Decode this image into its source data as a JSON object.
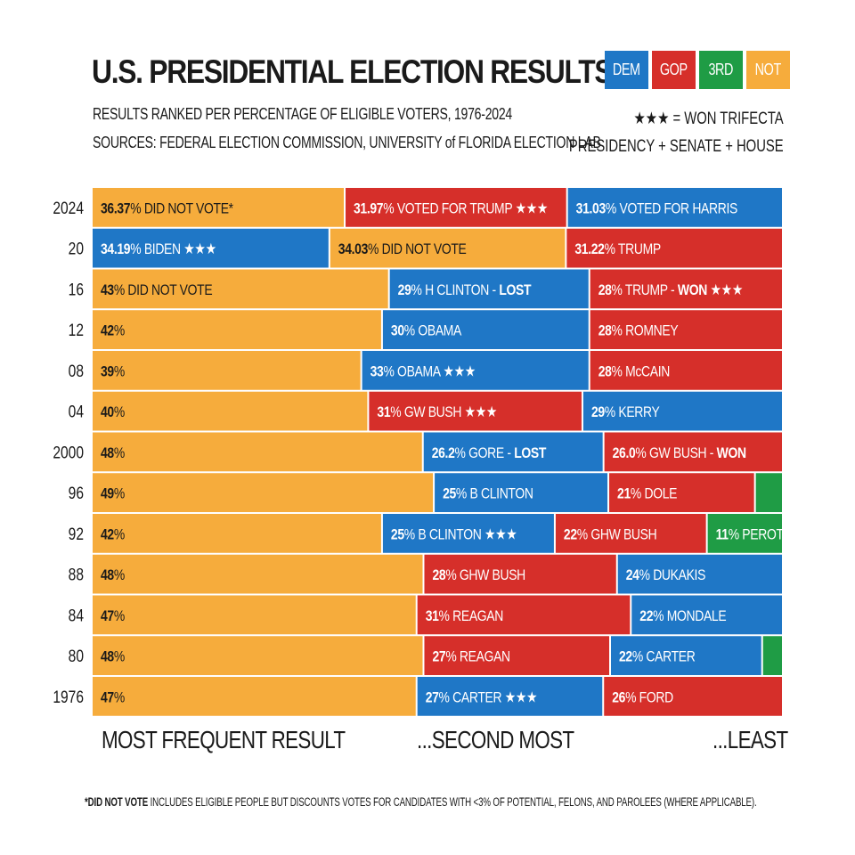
{
  "title": "U.S. PRESIDENTIAL ELECTION RESULTS",
  "subtitle": "RESULTS RANKED PER PERCENTAGE OF ELIGIBLE VOTERS, 1976-2024",
  "sources": "SOURCES: FEDERAL ELECTION COMMISSION, UNIVERSITY of FLORIDA ELECTION LAB",
  "legend": [
    {
      "label": "DEM",
      "color": "#1f77c6"
    },
    {
      "label": "GOP",
      "color": "#d62f2a"
    },
    {
      "label": "3RD",
      "color": "#1f9c45"
    },
    {
      "label": "NOT",
      "color": "#f6ac3c"
    }
  ],
  "trifecta_note": {
    "line1": "★★★ = WON TRIFECTA",
    "line2": "PRESIDENCY + SENATE + HOUSE"
  },
  "rank_labels": {
    "most": "MOST FREQUENT RESULT",
    "second": "...SECOND MOST",
    "least": "...LEAST"
  },
  "footnote": {
    "bold": "*DID NOT VOTE",
    "rest": " INCLUDES ELIGIBLE PEOPLE BUT DISCOUNTS VOTES FOR CANDIDATES WITH <3% OF POTENTIAL, FELONS, AND PAROLEES (WHERE APPLICABLE)."
  },
  "chart_data": {
    "type": "bar",
    "orientation": "horizontal-stacked",
    "categories": [
      "2024",
      "20",
      "16",
      "12",
      "08",
      "04",
      "2000",
      "96",
      "92",
      "88",
      "84",
      "80",
      "1976"
    ],
    "rows": [
      {
        "year": "2024",
        "segments": [
          {
            "party": "NOT",
            "value": 36.37,
            "num": "36.37",
            "text": "% DID NOT VOTE*"
          },
          {
            "party": "GOP",
            "value": 31.97,
            "num": "31.97",
            "text": "% VOTED FOR TRUMP ★★★"
          },
          {
            "party": "DEM",
            "value": 31.03,
            "num": "31.03",
            "text": "% VOTED FOR HARRIS"
          }
        ]
      },
      {
        "year": "20",
        "segments": [
          {
            "party": "DEM",
            "value": 34.19,
            "num": "34.19",
            "text": "% BIDEN ★★★"
          },
          {
            "party": "NOT",
            "value": 34.03,
            "num": "34.03",
            "text": "% DID NOT VOTE"
          },
          {
            "party": "GOP",
            "value": 31.22,
            "num": "31.22",
            "text": "% TRUMP"
          }
        ]
      },
      {
        "year": "16",
        "segments": [
          {
            "party": "NOT",
            "value": 43,
            "num": "43",
            "text": "% DID NOT VOTE"
          },
          {
            "party": "DEM",
            "value": 29,
            "num": "29",
            "text": "% H CLINTON - ",
            "bold_suffix": "LOST"
          },
          {
            "party": "GOP",
            "value": 28,
            "num": "28",
            "text": "% TRUMP - ",
            "bold_suffix": "WON",
            "after": " ★★★"
          }
        ]
      },
      {
        "year": "12",
        "segments": [
          {
            "party": "NOT",
            "value": 42,
            "num": "42",
            "text": "%"
          },
          {
            "party": "DEM",
            "value": 30,
            "num": "30",
            "text": "% OBAMA"
          },
          {
            "party": "GOP",
            "value": 28,
            "num": "28",
            "text": "% ROMNEY"
          }
        ]
      },
      {
        "year": "08",
        "segments": [
          {
            "party": "NOT",
            "value": 39,
            "num": "39",
            "text": "%"
          },
          {
            "party": "DEM",
            "value": 33,
            "num": "33",
            "text": "% OBAMA ★★★"
          },
          {
            "party": "GOP",
            "value": 28,
            "num": "28",
            "text": "% McCAIN"
          }
        ]
      },
      {
        "year": "04",
        "segments": [
          {
            "party": "NOT",
            "value": 40,
            "num": "40",
            "text": "%"
          },
          {
            "party": "GOP",
            "value": 31,
            "num": "31",
            "text": "% GW BUSH ★★★"
          },
          {
            "party": "DEM",
            "value": 29,
            "num": "29",
            "text": "% KERRY"
          }
        ]
      },
      {
        "year": "2000",
        "segments": [
          {
            "party": "NOT",
            "value": 48,
            "num": "48",
            "text": "%"
          },
          {
            "party": "DEM",
            "value": 26.2,
            "num": "26.2",
            "text": "% GORE - ",
            "bold_suffix": "LOST"
          },
          {
            "party": "GOP",
            "value": 26.0,
            "num": "26.0",
            "text": "% GW BUSH - ",
            "bold_suffix": "WON"
          }
        ]
      },
      {
        "year": "96",
        "segments": [
          {
            "party": "NOT",
            "value": 49,
            "num": "49",
            "text": "%"
          },
          {
            "party": "DEM",
            "value": 25,
            "num": "25",
            "text": "% B CLINTON"
          },
          {
            "party": "GOP",
            "value": 21,
            "num": "21",
            "text": "% DOLE"
          },
          {
            "party": "3RD",
            "value": 4,
            "num": "",
            "text": ""
          }
        ]
      },
      {
        "year": "92",
        "segments": [
          {
            "party": "NOT",
            "value": 42,
            "num": "42",
            "text": "%"
          },
          {
            "party": "DEM",
            "value": 25,
            "num": "25",
            "text": "% B CLINTON ★★★"
          },
          {
            "party": "GOP",
            "value": 22,
            "num": "22",
            "text": "% GHW BUSH"
          },
          {
            "party": "3RD",
            "value": 11,
            "num": "11",
            "text": "% PEROT"
          }
        ]
      },
      {
        "year": "88",
        "segments": [
          {
            "party": "NOT",
            "value": 48,
            "num": "48",
            "text": "%"
          },
          {
            "party": "GOP",
            "value": 28,
            "num": "28",
            "text": "% GHW BUSH"
          },
          {
            "party": "DEM",
            "value": 24,
            "num": "24",
            "text": "% DUKAKIS"
          }
        ]
      },
      {
        "year": "84",
        "segments": [
          {
            "party": "NOT",
            "value": 47,
            "num": "47",
            "text": "%"
          },
          {
            "party": "GOP",
            "value": 31,
            "num": "31",
            "text": "% REAGAN"
          },
          {
            "party": "DEM",
            "value": 22,
            "num": "22",
            "text": "% MONDALE"
          }
        ]
      },
      {
        "year": "80",
        "segments": [
          {
            "party": "NOT",
            "value": 48,
            "num": "48",
            "text": "%"
          },
          {
            "party": "GOP",
            "value": 27,
            "num": "27",
            "text": "% REAGAN"
          },
          {
            "party": "DEM",
            "value": 22,
            "num": "22",
            "text": "% CARTER"
          },
          {
            "party": "3RD",
            "value": 3,
            "num": "",
            "text": ""
          }
        ]
      },
      {
        "year": "1976",
        "segments": [
          {
            "party": "NOT",
            "value": 47,
            "num": "47",
            "text": "%"
          },
          {
            "party": "DEM",
            "value": 27,
            "num": "27",
            "text": "% CARTER ★★★"
          },
          {
            "party": "GOP",
            "value": 26,
            "num": "26",
            "text": "% FORD"
          }
        ]
      }
    ],
    "xlim": [
      0,
      100
    ],
    "grid": false,
    "legend_position": "top-right"
  }
}
